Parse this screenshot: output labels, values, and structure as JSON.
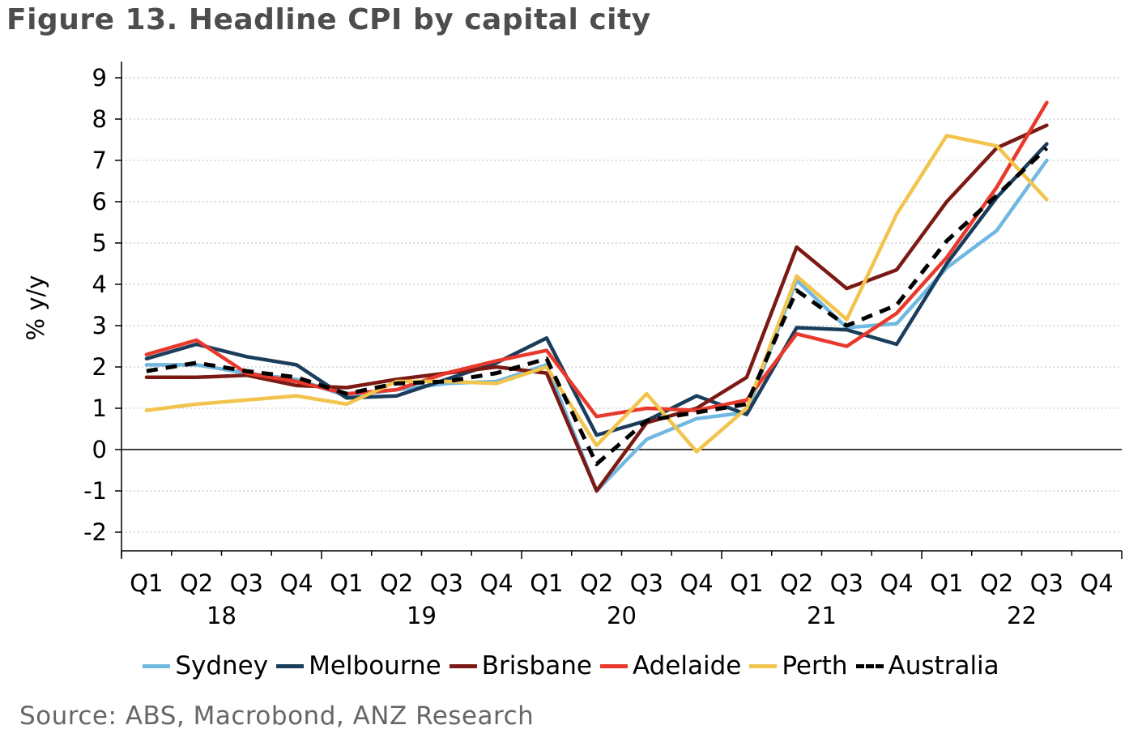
{
  "title": "Figure 13. Headline CPI by capital city",
  "source": "Source: ABS, Macrobond, ANZ Research",
  "chart_data": {
    "type": "line",
    "title": "Figure 13. Headline CPI by capital city",
    "ylabel": "% y/y",
    "xlabel": "",
    "ylim": [
      -2.5,
      9.5
    ],
    "yticks": [
      -2,
      -1,
      0,
      1,
      2,
      3,
      4,
      5,
      6,
      7,
      8,
      9
    ],
    "ytick_labels": [
      "-2",
      "-1",
      "0",
      "1",
      "2",
      "3",
      "4",
      "5",
      "6",
      "7",
      "8",
      "9"
    ],
    "quarter_labels": [
      "Q1",
      "Q2",
      "Q3",
      "Q4",
      "Q1",
      "Q2",
      "Q3",
      "Q4",
      "Q1",
      "Q2",
      "Q3",
      "Q4",
      "Q1",
      "Q2",
      "Q3",
      "Q4",
      "Q1",
      "Q2",
      "Q3",
      "Q4"
    ],
    "year_labels": [
      "18",
      "19",
      "20",
      "21",
      "22"
    ],
    "categories": [
      "Q1 18",
      "Q2 18",
      "Q3 18",
      "Q4 18",
      "Q1 19",
      "Q2 19",
      "Q3 19",
      "Q4 19",
      "Q1 20",
      "Q2 20",
      "Q3 20",
      "Q4 20",
      "Q1 21",
      "Q2 21",
      "Q3 21",
      "Q4 21",
      "Q1 22",
      "Q2 22",
      "Q3 22"
    ],
    "legend_position": "bottom",
    "series": [
      {
        "name": "Sydney",
        "color": "#70b8e0",
        "dash": false,
        "values": [
          2.05,
          2.05,
          1.85,
          1.7,
          1.3,
          1.45,
          1.6,
          1.65,
          2.05,
          -1.0,
          0.25,
          0.75,
          0.9,
          4.1,
          2.95,
          3.05,
          4.4,
          5.3,
          7.0
        ]
      },
      {
        "name": "Melbourne",
        "color": "#1a3d5c",
        "dash": false,
        "values": [
          2.2,
          2.55,
          2.25,
          2.05,
          1.25,
          1.3,
          1.7,
          2.1,
          2.7,
          0.35,
          0.7,
          1.3,
          0.85,
          2.95,
          2.9,
          2.55,
          4.5,
          6.1,
          7.4
        ]
      },
      {
        "name": "Brisbane",
        "color": "#7b1a14",
        "dash": false,
        "values": [
          1.75,
          1.75,
          1.8,
          1.55,
          1.5,
          1.7,
          1.85,
          2.0,
          1.85,
          -1.0,
          0.65,
          1.0,
          1.75,
          4.9,
          3.9,
          4.35,
          6.0,
          7.3,
          7.85
        ]
      },
      {
        "name": "Adelaide",
        "color": "#e8392c",
        "dash": false,
        "values": [
          2.3,
          2.65,
          1.85,
          1.65,
          1.35,
          1.45,
          1.85,
          2.15,
          2.4,
          0.8,
          1.0,
          0.95,
          1.2,
          2.8,
          2.5,
          3.3,
          4.65,
          6.35,
          8.4
        ]
      },
      {
        "name": "Perth",
        "color": "#f2c44d",
        "dash": false,
        "values": [
          0.95,
          1.1,
          1.2,
          1.3,
          1.1,
          1.65,
          1.65,
          1.6,
          2.0,
          0.1,
          1.35,
          -0.05,
          1.0,
          4.2,
          3.15,
          5.7,
          7.6,
          7.35,
          6.05
        ]
      },
      {
        "name": "Australia",
        "color": "#000000",
        "dash": true,
        "values": [
          1.9,
          2.1,
          1.9,
          1.75,
          1.35,
          1.6,
          1.65,
          1.85,
          2.2,
          -0.35,
          0.7,
          0.9,
          1.1,
          3.85,
          3.0,
          3.5,
          5.05,
          6.15,
          7.3
        ]
      }
    ]
  }
}
